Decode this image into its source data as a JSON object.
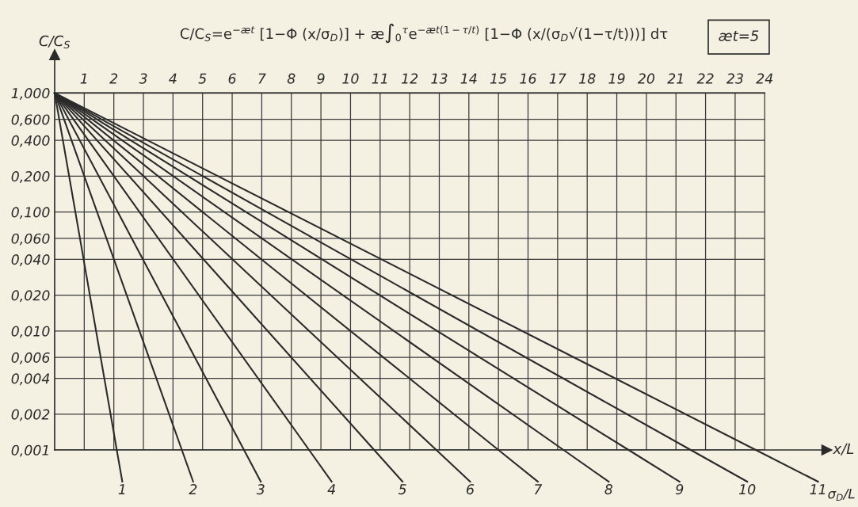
{
  "chart_data": {
    "type": "line",
    "title": "C/C$_{S}$=e$^{−æt}$ [1−Φ (x/σ$_{D}$)] + æ∫$_{0}$$^{τ}$e$^{−æt(1−τ/t)}$ [1−Φ (x/(σ$_{D}$√(1−τ/t)))] dτ",
    "xlabel": "x/L",
    "ylabel": "C/C$_{S}$",
    "annotations": [
      "æt=5",
      "σ$_{D}$/L"
    ],
    "log": "y",
    "xlim": [
      0,
      26.1
    ],
    "ylim": [
      0.001,
      2.1
    ],
    "xticks": [
      1,
      2,
      3,
      4,
      5,
      6,
      7,
      8,
      9,
      10,
      11,
      12,
      13,
      14,
      15,
      16,
      17,
      18,
      19,
      20,
      21,
      22,
      23,
      24
    ],
    "yticks": [
      {
        "value": 1,
        "label": "1,000"
      },
      {
        "value": 0.6,
        "label": "0,600"
      },
      {
        "value": 0.4,
        "label": "0,400"
      },
      {
        "value": 0.2,
        "label": "0,200"
      },
      {
        "value": 0.1,
        "label": "0,100"
      },
      {
        "value": 0.06,
        "label": "0,060"
      },
      {
        "value": 0.04,
        "label": "0,040"
      },
      {
        "value": 0.02,
        "label": "0,020"
      },
      {
        "value": 0.01,
        "label": "0,010"
      },
      {
        "value": 0.006,
        "label": "0,006"
      },
      {
        "value": 0.004,
        "label": "0,004"
      },
      {
        "value": 0.002,
        "label": "0,002"
      },
      {
        "value": 0.001,
        "label": "0,001"
      }
    ],
    "grid": true,
    "line_style": "solid",
    "series": [
      {
        "name": "1",
        "color": "#2b2b2b",
        "x": [
          0,
          2.1
        ],
        "values": [
          1,
          0.001
        ]
      },
      {
        "name": "2",
        "color": "#2b2b2b",
        "x": [
          0,
          4.3
        ],
        "values": [
          1,
          0.001
        ]
      },
      {
        "name": "3",
        "color": "#2b2b2b",
        "x": [
          0,
          6.4
        ],
        "values": [
          1,
          0.001
        ]
      },
      {
        "name": "4",
        "color": "#2b2b2b",
        "x": [
          0,
          8.6
        ],
        "values": [
          1,
          0.001
        ]
      },
      {
        "name": "5",
        "color": "#2b2b2b",
        "x": [
          0,
          10.8
        ],
        "values": [
          1,
          0.001
        ]
      },
      {
        "name": "6",
        "color": "#2b2b2b",
        "x": [
          0,
          12.9
        ],
        "values": [
          1,
          0.001
        ]
      },
      {
        "name": "7",
        "color": "#2b2b2b",
        "x": [
          0,
          15.0
        ],
        "values": [
          1,
          0.001
        ]
      },
      {
        "name": "8",
        "color": "#2b2b2b",
        "x": [
          0,
          17.2
        ],
        "values": [
          1,
          0.001
        ]
      },
      {
        "name": "9",
        "color": "#2b2b2b",
        "x": [
          0,
          19.4
        ],
        "values": [
          1,
          0.001
        ]
      },
      {
        "name": "10",
        "color": "#2b2b2b",
        "x": [
          0,
          21.5
        ],
        "values": [
          1,
          0.001
        ]
      },
      {
        "name": "11",
        "color": "#2b2b2b",
        "x": [
          0,
          23.7
        ],
        "values": [
          1,
          0.001
        ]
      }
    ]
  }
}
